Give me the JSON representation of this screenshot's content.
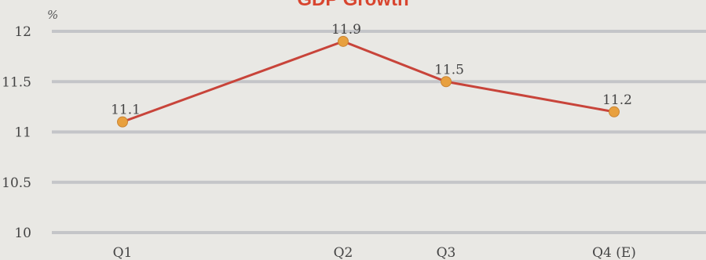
{
  "chart_data": {
    "type": "line",
    "title": "GDP Growth",
    "unit": "%",
    "categories": [
      "Q1",
      "Q2",
      "Q3",
      "Q4 (E)"
    ],
    "series": [
      {
        "values": [
          11.1,
          11.9,
          11.5,
          11.2
        ],
        "data_labels": [
          "11.1",
          "11.9",
          "11.5",
          "11.2"
        ]
      }
    ],
    "ylim": [
      10,
      12
    ],
    "yticks": [
      10,
      10.5,
      11,
      11.5,
      12
    ],
    "ytick_labels": [
      "10",
      "10.5",
      "11",
      "11.5",
      "12"
    ],
    "grid": true,
    "colors": {
      "line": "#c8443a",
      "marker": "#e8a03e",
      "grid": "#c4c5c8",
      "title": "#d8452f",
      "text": "#444444"
    }
  }
}
